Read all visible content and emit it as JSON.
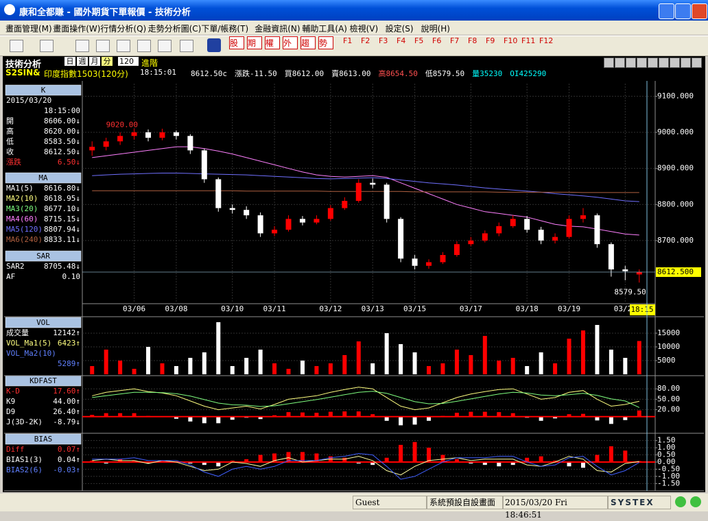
{
  "window": {
    "title": "康和全都賺 - 國外期貨下單報價 - 技術分析"
  },
  "menu": [
    "畫面管理(M)",
    "畫面操作(W)",
    "行情分析(Q)",
    "走勢分析圖(C)",
    "下單/帳務(T)",
    "金融資訊(N)",
    "輔助工具(A)",
    "檢視(V)",
    "設定(S)",
    "說明(H)"
  ],
  "toolbar": {
    "buttons": [
      "股",
      "期",
      "權",
      "外",
      "趨",
      "勢"
    ],
    "fkeys": [
      "F1",
      "F2",
      "F3",
      "F4",
      "F5",
      "F6",
      "F7",
      "F8",
      "F9",
      "F10",
      "F11",
      "F12"
    ]
  },
  "header": {
    "name": "技術分析",
    "periods": [
      "日",
      "週",
      "月",
      "分"
    ],
    "interval": "120",
    "advanced": "進階",
    "symbol": "S2SIN&",
    "contract": "印度指數1503(120分)",
    "time": "18:15:01",
    "quote": [
      {
        "text": "8612.50c",
        "color": "#ffffff"
      },
      {
        "text": "漲跌-11.50",
        "color": "#ffffff"
      },
      {
        "text": "買8612.00",
        "color": "#ffffff"
      },
      {
        "text": "賣8613.00",
        "color": "#ffffff"
      },
      {
        "text": "高8654.50",
        "color": "#ff5050"
      },
      {
        "text": "低8579.50",
        "color": "#ffffff"
      },
      {
        "text": "量35230",
        "color": "#00ffff"
      },
      {
        "text": "OI425290",
        "color": "#00ffff"
      }
    ]
  },
  "side": [
    {
      "title": "K",
      "rows": [
        {
          "label": "2015/03/20"
        },
        {
          "value": "18:15:00"
        },
        {
          "label": "開",
          "value": "8606.00↓"
        },
        {
          "label": "高",
          "value": "8620.00↓"
        },
        {
          "label": "低",
          "value": "8583.50↓"
        },
        {
          "label": "收",
          "value": "8612.50↓"
        },
        {
          "label": "漲跌",
          "value": "6.50↓",
          "color": "#ff3030"
        }
      ]
    },
    {
      "title": "MA",
      "rows": [
        {
          "label": "MA1(5)",
          "value": "8616.80↓",
          "color": "#ffffff"
        },
        {
          "label": "MA2(10)",
          "value": "8618.95↓",
          "color": "#ffff80"
        },
        {
          "label": "MA3(20)",
          "value": "8677.10↓",
          "color": "#80ff80"
        },
        {
          "label": "MA4(60)",
          "value": "8715.15↓",
          "color": "#ff80ff"
        },
        {
          "label": "MA5(120)",
          "value": "8807.94↓",
          "color": "#7070ff"
        },
        {
          "label": "MA6(240)",
          "value": "8833.11↓",
          "color": "#b06040"
        }
      ]
    },
    {
      "title": "SAR",
      "rows": [
        {
          "label": "SAR2",
          "value": "8705.48↓"
        },
        {
          "label": "AF",
          "value": "0.10"
        }
      ]
    },
    {
      "title": "VOL",
      "rows": [
        {
          "label": "成交量",
          "value": "12142↑"
        },
        {
          "label": "VOL_Ma1(5)",
          "value": "6423↑",
          "color": "#ffff80"
        },
        {
          "label": "VOL_Ma2(10)",
          "color": "#6080ff"
        },
        {
          "value": "5289↑",
          "color": "#6080ff"
        }
      ]
    },
    {
      "title": "KDFAST",
      "rows": [
        {
          "label": "K-D",
          "value": "17.60↑",
          "color": "#ff3030"
        },
        {
          "label": "K9",
          "value": "44.00↑"
        },
        {
          "label": "D9",
          "value": "26.40↑"
        },
        {
          "label": "J(3D-2K)",
          "value": "-8.79↓"
        }
      ]
    },
    {
      "title": "BIAS",
      "rows": [
        {
          "label": "Diff",
          "value": "0.07↑",
          "color": "#ff3030"
        },
        {
          "label": "BIAS1(3)",
          "value": "0.04↑"
        },
        {
          "label": "BIAS2(6)",
          "value": "-0.03↑",
          "color": "#6080ff"
        }
      ]
    }
  ],
  "chart_data": [
    {
      "type": "candlestick",
      "categories": [
        null,
        null,
        null,
        "03/06",
        null,
        null,
        "03/08",
        null,
        null,
        null,
        "03/10",
        null,
        null,
        "03/11",
        null,
        null,
        null,
        "03/12",
        null,
        null,
        "03/13",
        null,
        null,
        "03/15",
        null,
        null,
        null,
        "03/17",
        null,
        null,
        null,
        "03/18",
        null,
        null,
        "03/19",
        null,
        null,
        null,
        "03/20",
        null
      ],
      "open": [
        8950,
        8960,
        8975,
        8990,
        9000,
        8985,
        9000,
        8990,
        8950,
        8870,
        8790,
        8785,
        8770,
        8720,
        8730,
        8760,
        8750,
        8760,
        8790,
        8810,
        8860,
        8855,
        8760,
        8650,
        8630,
        8640,
        8660,
        8690,
        8700,
        8720,
        8740,
        8760,
        8730,
        8700,
        8710,
        8760,
        8770,
        8690,
        8620,
        8606
      ],
      "high": [
        8975,
        8985,
        9000,
        9010,
        9008,
        9010,
        9005,
        8995,
        8955,
        8875,
        8800,
        8795,
        8778,
        8740,
        8770,
        8768,
        8770,
        8798,
        8820,
        8870,
        8872,
        8860,
        8765,
        8660,
        8648,
        8668,
        8698,
        8710,
        8728,
        8750,
        8770,
        8768,
        8738,
        8720,
        8770,
        8790,
        8775,
        8695,
        8630,
        8620
      ],
      "low": [
        8935,
        8950,
        8965,
        8980,
        8975,
        8978,
        8980,
        8940,
        8860,
        8780,
        8775,
        8760,
        8710,
        8712,
        8725,
        8742,
        8745,
        8755,
        8785,
        8805,
        8845,
        8750,
        8640,
        8620,
        8622,
        8635,
        8655,
        8685,
        8695,
        8712,
        8735,
        8722,
        8690,
        8692,
        8705,
        8750,
        8680,
        8600,
        8590,
        8583.5
      ],
      "close": [
        8960,
        8975,
        8990,
        9000,
        8985,
        9000,
        8990,
        8950,
        8870,
        8790,
        8785,
        8770,
        8720,
        8730,
        8760,
        8750,
        8760,
        8790,
        8810,
        8860,
        8855,
        8760,
        8650,
        8630,
        8640,
        8660,
        8690,
        8700,
        8720,
        8740,
        8760,
        8730,
        8700,
        8710,
        8760,
        8770,
        8690,
        8620,
        8615,
        8612.5
      ],
      "up_color": "#ff0000",
      "down_color": "#ffffff",
      "lines": [
        {
          "color": "#ff80ff",
          "values": [
            8930,
            8935,
            8940,
            8945,
            8950,
            8955,
            8960,
            8960,
            8955,
            8948,
            8940,
            8930,
            8920,
            8910,
            8900,
            8890,
            8882,
            8878,
            8876,
            8878,
            8880,
            8875,
            8860,
            8845,
            8830,
            8815,
            8800,
            8790,
            8780,
            8775,
            8770,
            8765,
            8755,
            8745,
            8740,
            8738,
            8732,
            8725,
            8718,
            8715.15
          ]
        },
        {
          "color": "#7070ff",
          "values": [
            8880,
            8882,
            8884,
            8885,
            8886,
            8887,
            8887,
            8886,
            8885,
            8884,
            8883,
            8882,
            8880,
            8878,
            8876,
            8874,
            8872,
            8871,
            8872,
            8873,
            8874,
            8872,
            8868,
            8864,
            8860,
            8857,
            8854,
            8850,
            8846,
            8843,
            8840,
            8837,
            8834,
            8830,
            8827,
            8824,
            8820,
            8815,
            8810,
            8807.94
          ]
        },
        {
          "color": "#b06040",
          "values": [
            8838,
            8838,
            8838,
            8838,
            8838,
            8838,
            8838,
            8838,
            8838,
            8838,
            8838,
            8837,
            8837,
            8837,
            8837,
            8837,
            8837,
            8836,
            8836,
            8836,
            8836,
            8836,
            8836,
            8835,
            8835,
            8835,
            8835,
            8835,
            8835,
            8834,
            8834,
            8834,
            8834,
            8834,
            8834,
            8833,
            8833,
            8833,
            8833,
            8833.11
          ]
        }
      ],
      "ylim": [
        8525,
        9135
      ],
      "yticks": [
        {
          "value": 8700,
          "label": "8700.000"
        },
        {
          "value": 8800,
          "label": "8800.000"
        },
        {
          "value": 8900,
          "label": "8900.000"
        },
        {
          "value": 9000,
          "label": "9000.000"
        },
        {
          "value": 9100,
          "label": "9100.000"
        }
      ],
      "last_price": {
        "value": 8612.5,
        "label": "8612.500"
      },
      "annotations": [
        {
          "value": 9020,
          "label": "9020.00"
        },
        {
          "value": 8579.5,
          "label": "8579.50"
        }
      ],
      "time_label": "18:15"
    },
    {
      "type": "bar",
      "values": [
        3000,
        9000,
        5000,
        2000,
        10000,
        4000,
        3000,
        6000,
        8000,
        19000,
        3000,
        6000,
        9000,
        4000,
        2000,
        5000,
        3000,
        4000,
        7000,
        12000,
        4000,
        15000,
        11000,
        8000,
        3000,
        4000,
        9000,
        7000,
        14000,
        5000,
        6000,
        3000,
        8000,
        4000,
        13000,
        16000,
        18000,
        9000,
        6000,
        12142
      ],
      "ylim": [
        0,
        20000
      ],
      "yticks": [
        5000,
        10000,
        15000
      ]
    },
    {
      "type": "kd",
      "bars": [
        5,
        10,
        10,
        10,
        2,
        -1,
        -6,
        -14,
        -19,
        -19,
        -9,
        -3,
        -7,
        4,
        13,
        12,
        11,
        14,
        15,
        15,
        7,
        -12,
        -25,
        -23,
        -12,
        2,
        11,
        14,
        14,
        13,
        10,
        -3,
        -12,
        -5,
        7,
        8,
        -11,
        -21,
        -10,
        17.6
      ],
      "series": [
        {
          "color": "#ffff80",
          "values": [
            60,
            70,
            75,
            80,
            72,
            68,
            60,
            45,
            30,
            20,
            25,
            30,
            22,
            35,
            50,
            55,
            60,
            70,
            78,
            85,
            80,
            55,
            30,
            20,
            25,
            40,
            55,
            65,
            72,
            78,
            80,
            65,
            50,
            55,
            70,
            75,
            50,
            30,
            35,
            44
          ]
        },
        {
          "color": "#80ff80",
          "values": [
            55,
            60,
            65,
            70,
            70,
            69,
            66,
            59,
            49,
            39,
            34,
            33,
            29,
            31,
            37,
            43,
            49,
            56,
            63,
            70,
            73,
            67,
            55,
            43,
            37,
            38,
            44,
            51,
            58,
            65,
            70,
            68,
            62,
            60,
            63,
            67,
            61,
            51,
            45,
            26.4
          ]
        }
      ],
      "ylim": [
        -40,
        110
      ],
      "yticks": [
        {
          "value": 20,
          "label": "20.00"
        },
        {
          "value": 50,
          "label": "50.00"
        },
        {
          "value": 80,
          "label": "80.00"
        }
      ]
    },
    {
      "type": "bias",
      "bars": [
        0.1,
        -0.1,
        0.2,
        0.1,
        -0.1,
        0.1,
        0,
        -0.1,
        -0.2,
        -0.3,
        0.1,
        0.2,
        0.5,
        0.6,
        0.7,
        0.7,
        0.6,
        0.4,
        0.3,
        -0.1,
        -0.2,
        0.3,
        1.2,
        1.4,
        1,
        0.5,
        0.2,
        -0.1,
        -0.2,
        -0.3,
        -0.2,
        0.3,
        0.4,
        0.1,
        -0.3,
        -0.4,
        0.5,
        1.1,
        0.8,
        0.07
      ],
      "series": [
        {
          "color": "#ffffa0",
          "values": [
            0.1,
            0.2,
            0.1,
            0.1,
            -0.1,
            0.1,
            0,
            -0.3,
            -0.6,
            -0.5,
            0,
            -0.1,
            -0.3,
            0.1,
            0.3,
            0,
            0.1,
            0.2,
            0.2,
            0.4,
            0.1,
            -0.6,
            -0.9,
            -0.3,
            0.1,
            0.2,
            0.3,
            0.1,
            0.2,
            0.2,
            0.2,
            -0.2,
            -0.3,
            0,
            0.4,
            0.2,
            -0.6,
            -0.7,
            -0.1,
            0.04
          ]
        },
        {
          "color": "#4060ff",
          "values": [
            0.2,
            0.2,
            0.2,
            0.3,
            0.1,
            0.1,
            0.1,
            -0.2,
            -0.7,
            -1,
            -0.5,
            -0.3,
            -0.5,
            -0.3,
            0.1,
            0.1,
            0.1,
            0.3,
            0.4,
            0.6,
            0.5,
            -0.3,
            -1.2,
            -1,
            -0.5,
            0,
            0.3,
            0.3,
            0.3,
            0.4,
            0.4,
            0,
            -0.3,
            -0.2,
            0.3,
            0.4,
            -0.3,
            -0.9,
            -0.6,
            -0.03
          ]
        }
      ],
      "ylim": [
        -1.82,
        1.82
      ],
      "yticks": [
        {
          "value": -1.5,
          "label": "-1.50"
        },
        {
          "value": -1,
          "label": "-1.00"
        },
        {
          "value": -0.5,
          "label": "-0.50"
        },
        {
          "value": 0,
          "label": "0.00"
        },
        {
          "value": 0.5,
          "label": "0.50"
        },
        {
          "value": 1,
          "label": "1.00"
        },
        {
          "value": 1.5,
          "label": "1.50"
        }
      ]
    }
  ],
  "status": {
    "user": "Guest",
    "layout": "系統預設自設畫面",
    "datetime": "2015/03/20 Fri 18:46:51",
    "brand": "SYSTEX"
  }
}
